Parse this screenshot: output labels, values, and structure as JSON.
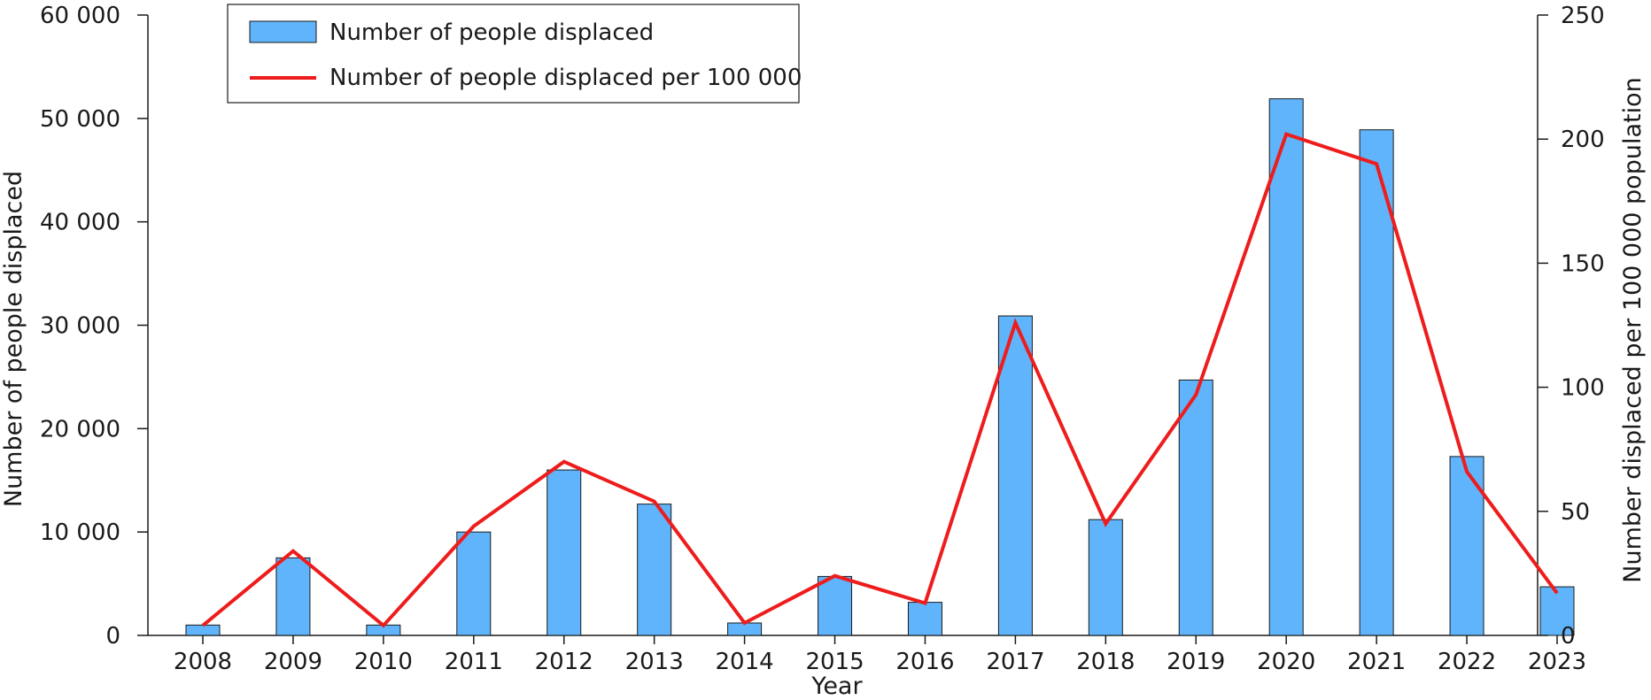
{
  "chart_data": {
    "type": "bar",
    "categories": [
      "2008",
      "2009",
      "2010",
      "2011",
      "2012",
      "2013",
      "2014",
      "2015",
      "2016",
      "2017",
      "2018",
      "2019",
      "2020",
      "2021",
      "2022",
      "2023"
    ],
    "series": [
      {
        "name": "Number of people displaced",
        "type": "bar",
        "axis": "left",
        "color": "#5fb4fb",
        "values": [
          1000,
          7500,
          1000,
          10000,
          16000,
          12700,
          1200,
          5700,
          3200,
          30900,
          11200,
          24700,
          51900,
          48900,
          17300,
          4700
        ]
      },
      {
        "name": "Number of people displaced per 100 000",
        "type": "line",
        "axis": "right",
        "color": "#ee1c1c",
        "values": [
          4,
          34,
          4,
          44,
          70,
          54,
          5,
          24,
          13,
          126,
          45,
          97,
          202,
          190,
          66,
          17
        ]
      }
    ],
    "xlabel": "Year",
    "ylabel": "Number of people displaced",
    "y2label": "Number displaced per 100 000 population",
    "ylim": [
      0,
      60000
    ],
    "y2lim": [
      0,
      250
    ],
    "yticks": [
      {
        "value": 0,
        "label": "0"
      },
      {
        "value": 10000,
        "label": "10 000"
      },
      {
        "value": 20000,
        "label": "20 000"
      },
      {
        "value": 30000,
        "label": "30 000"
      },
      {
        "value": 40000,
        "label": "40 000"
      },
      {
        "value": 50000,
        "label": "50 000"
      },
      {
        "value": 60000,
        "label": "60 000"
      }
    ],
    "y2ticks": [
      {
        "value": 0,
        "label": "0"
      },
      {
        "value": 50,
        "label": "50"
      },
      {
        "value": 100,
        "label": "100"
      },
      {
        "value": 150,
        "label": "150"
      },
      {
        "value": 200,
        "label": "200"
      },
      {
        "value": 250,
        "label": "250"
      }
    ],
    "legend": {
      "position": "top-left",
      "bar_label": "Number of people displaced",
      "line_label": "Number of people displaced per 100 000"
    },
    "grid": false
  }
}
